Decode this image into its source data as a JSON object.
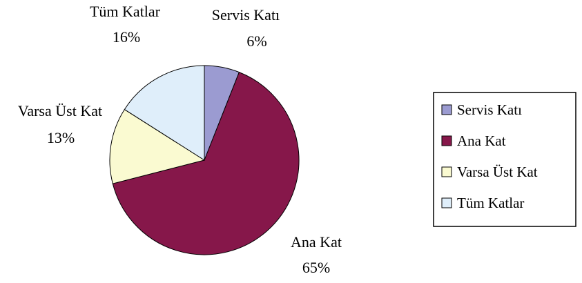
{
  "chart_data": {
    "type": "pie",
    "categories": [
      "Servis Katı",
      "Ana Kat",
      "Varsa Üst Kat",
      "Tüm Katlar"
    ],
    "values": [
      6,
      65,
      13,
      16
    ],
    "value_labels": [
      "6%",
      "65%",
      "13%",
      "16%"
    ],
    "colors": [
      "#9b9bd1",
      "#86174a",
      "#fafad1",
      "#dfeefa"
    ],
    "legend": {
      "position": "right",
      "entries": [
        "Servis Katı",
        "Ana Kat",
        "Varsa Üst Kat",
        "Tüm Katlar"
      ]
    },
    "start_angle_deg": 0,
    "direction": "clockwise"
  }
}
